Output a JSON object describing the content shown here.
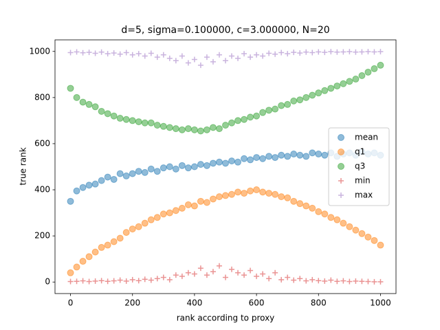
{
  "chart_data": {
    "type": "scatter",
    "title": "d=5, sigma=0.100000, c=3.000000, N=20",
    "x_label": "rank according to proxy",
    "y_label": "true rank",
    "x": [
      0,
      20,
      40,
      60,
      80,
      100,
      120,
      140,
      160,
      180,
      200,
      220,
      240,
      260,
      280,
      300,
      320,
      340,
      360,
      380,
      400,
      420,
      440,
      460,
      480,
      500,
      520,
      540,
      560,
      580,
      600,
      620,
      640,
      660,
      680,
      700,
      720,
      740,
      760,
      780,
      800,
      820,
      840,
      860,
      880,
      900,
      920,
      940,
      960,
      980,
      1000
    ],
    "series": [
      {
        "name": "mean",
        "color": "#1f77b4",
        "marker": "o",
        "values": [
          350,
          395,
          410,
          420,
          425,
          440,
          455,
          445,
          470,
          460,
          470,
          480,
          475,
          490,
          480,
          495,
          500,
          490,
          505,
          495,
          500,
          510,
          505,
          515,
          520,
          515,
          525,
          520,
          535,
          530,
          540,
          535,
          545,
          540,
          550,
          545,
          555,
          550,
          545,
          560,
          555,
          550,
          560,
          545,
          555,
          560,
          550,
          565,
          555,
          560,
          550
        ]
      },
      {
        "name": "q1",
        "color": "#ff7f0e",
        "marker": "o",
        "values": [
          40,
          65,
          90,
          110,
          130,
          150,
          160,
          175,
          190,
          215,
          230,
          240,
          255,
          270,
          280,
          295,
          300,
          310,
          320,
          335,
          330,
          350,
          345,
          360,
          370,
          375,
          380,
          390,
          385,
          395,
          400,
          390,
          385,
          380,
          370,
          365,
          350,
          340,
          330,
          320,
          305,
          295,
          280,
          270,
          255,
          240,
          225,
          210,
          195,
          180,
          160
        ]
      },
      {
        "name": "q3",
        "color": "#2ca02c",
        "marker": "o",
        "values": [
          840,
          800,
          780,
          770,
          760,
          740,
          730,
          720,
          710,
          705,
          700,
          695,
          690,
          690,
          680,
          675,
          670,
          665,
          660,
          665,
          660,
          655,
          660,
          670,
          665,
          680,
          690,
          700,
          705,
          715,
          720,
          735,
          745,
          750,
          765,
          770,
          785,
          790,
          800,
          810,
          820,
          830,
          840,
          850,
          860,
          870,
          880,
          895,
          910,
          925,
          940
        ]
      },
      {
        "name": "min",
        "color": "#d62728",
        "marker": "+",
        "values": [
          2,
          3,
          5,
          2,
          4,
          6,
          3,
          5,
          8,
          4,
          10,
          6,
          12,
          8,
          15,
          20,
          10,
          30,
          25,
          40,
          35,
          60,
          30,
          45,
          70,
          20,
          55,
          40,
          30,
          50,
          25,
          35,
          15,
          40,
          10,
          20,
          8,
          15,
          5,
          10,
          6,
          4,
          8,
          3,
          5,
          2,
          4,
          3,
          2,
          1,
          1
        ]
      },
      {
        "name": "max",
        "color": "#9467bd",
        "marker": "+",
        "values": [
          995,
          998,
          994,
          996,
          992,
          997,
          990,
          993,
          988,
          995,
          985,
          990,
          980,
          992,
          975,
          985,
          970,
          960,
          980,
          950,
          965,
          940,
          975,
          955,
          985,
          960,
          980,
          970,
          990,
          975,
          985,
          980,
          992,
          988,
          995,
          990,
          996,
          993,
          997,
          995,
          998,
          996,
          999,
          997,
          998,
          999,
          997,
          998,
          999,
          998,
          999
        ]
      }
    ],
    "xlim": [
      -50,
      1050
    ],
    "xticks": [
      0,
      200,
      400,
      600,
      800,
      1000
    ],
    "ylim": [
      -50,
      1050
    ],
    "yticks": [
      0,
      200,
      400,
      600,
      800,
      1000
    ],
    "legend": "center right"
  }
}
